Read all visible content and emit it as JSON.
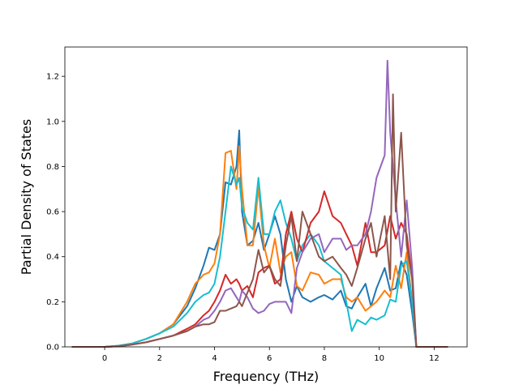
{
  "chart_data": {
    "type": "line",
    "xlabel": "Frequency (THz)",
    "ylabel": "Partial Density of States",
    "xlim": [
      -1.45,
      13.2
    ],
    "ylim": [
      0.0,
      1.33
    ],
    "xticks": [
      "0",
      "2",
      "4",
      "6",
      "8",
      "10",
      "12"
    ],
    "yticks": [
      "0.0",
      "0.2",
      "0.4",
      "0.6",
      "0.8",
      "1.0",
      "1.2"
    ],
    "grid": false,
    "legend": "none",
    "series": [
      {
        "color": "#1f77b4",
        "x": [
          -1.2,
          0.0,
          0.5,
          1.0,
          1.5,
          2.0,
          2.5,
          3.0,
          3.3,
          3.6,
          3.8,
          4.0,
          4.2,
          4.4,
          4.6,
          4.8,
          4.9,
          5.0,
          5.2,
          5.4,
          5.6,
          5.8,
          6.0,
          6.2,
          6.4,
          6.6,
          6.8,
          7.0,
          7.2,
          7.5,
          7.8,
          8.0,
          8.3,
          8.6,
          8.8,
          9.0,
          9.2,
          9.5,
          9.7,
          9.9,
          10.2,
          10.4,
          10.6,
          10.8,
          11.0,
          11.2,
          11.35,
          11.5,
          12.5
        ],
        "y": [
          0.0,
          0.0,
          0.005,
          0.015,
          0.035,
          0.06,
          0.1,
          0.18,
          0.26,
          0.36,
          0.44,
          0.43,
          0.5,
          0.73,
          0.72,
          0.8,
          0.96,
          0.6,
          0.45,
          0.47,
          0.55,
          0.43,
          0.5,
          0.58,
          0.5,
          0.3,
          0.2,
          0.27,
          0.22,
          0.2,
          0.22,
          0.23,
          0.21,
          0.25,
          0.18,
          0.17,
          0.22,
          0.28,
          0.18,
          0.26,
          0.35,
          0.25,
          0.26,
          0.38,
          0.32,
          0.15,
          0.0,
          0.0,
          0.0
        ]
      },
      {
        "color": "#ff7f0e",
        "x": [
          -1.2,
          0.0,
          0.5,
          1.0,
          1.5,
          2.0,
          2.5,
          3.0,
          3.3,
          3.6,
          3.8,
          4.0,
          4.2,
          4.4,
          4.6,
          4.8,
          4.9,
          5.0,
          5.2,
          5.4,
          5.6,
          5.8,
          6.0,
          6.2,
          6.4,
          6.6,
          6.8,
          7.0,
          7.2,
          7.5,
          7.8,
          8.0,
          8.3,
          8.6,
          8.8,
          9.0,
          9.2,
          9.5,
          9.7,
          9.9,
          10.2,
          10.4,
          10.6,
          10.8,
          11.0,
          11.2,
          11.35,
          11.5,
          12.5
        ],
        "y": [
          0.0,
          0.0,
          0.005,
          0.015,
          0.035,
          0.06,
          0.1,
          0.2,
          0.28,
          0.32,
          0.33,
          0.37,
          0.5,
          0.86,
          0.87,
          0.7,
          0.89,
          0.7,
          0.45,
          0.45,
          0.71,
          0.45,
          0.35,
          0.48,
          0.33,
          0.4,
          0.42,
          0.27,
          0.25,
          0.33,
          0.32,
          0.28,
          0.3,
          0.3,
          0.22,
          0.2,
          0.22,
          0.16,
          0.18,
          0.2,
          0.25,
          0.22,
          0.36,
          0.26,
          0.42,
          0.2,
          0.0,
          0.0,
          0.0
        ]
      },
      {
        "color": "#17becf",
        "x": [
          -1.2,
          0.0,
          0.5,
          1.0,
          1.5,
          2.0,
          2.5,
          3.0,
          3.3,
          3.6,
          3.8,
          4.0,
          4.2,
          4.4,
          4.6,
          4.8,
          4.9,
          5.0,
          5.2,
          5.4,
          5.6,
          5.8,
          6.0,
          6.2,
          6.4,
          6.6,
          6.8,
          7.0,
          7.2,
          7.5,
          7.8,
          8.0,
          8.3,
          8.6,
          8.8,
          9.0,
          9.2,
          9.5,
          9.7,
          9.9,
          10.2,
          10.4,
          10.6,
          10.8,
          11.0,
          11.2,
          11.35,
          11.5,
          12.5
        ],
        "y": [
          0.0,
          0.0,
          0.005,
          0.015,
          0.035,
          0.06,
          0.09,
          0.15,
          0.2,
          0.23,
          0.24,
          0.28,
          0.4,
          0.6,
          0.8,
          0.72,
          0.75,
          0.62,
          0.55,
          0.52,
          0.75,
          0.5,
          0.5,
          0.6,
          0.65,
          0.55,
          0.48,
          0.38,
          0.45,
          0.5,
          0.45,
          0.38,
          0.35,
          0.32,
          0.2,
          0.07,
          0.12,
          0.1,
          0.13,
          0.12,
          0.14,
          0.21,
          0.2,
          0.36,
          0.38,
          0.2,
          0.0,
          0.0,
          0.0
        ]
      },
      {
        "color": "#d62728",
        "x": [
          -1.2,
          0.0,
          0.5,
          1.0,
          1.5,
          2.0,
          2.5,
          3.0,
          3.3,
          3.6,
          3.8,
          4.0,
          4.2,
          4.4,
          4.6,
          4.8,
          4.9,
          5.0,
          5.2,
          5.4,
          5.6,
          5.8,
          6.0,
          6.2,
          6.4,
          6.6,
          6.8,
          7.0,
          7.2,
          7.5,
          7.8,
          8.0,
          8.3,
          8.6,
          8.8,
          9.0,
          9.2,
          9.5,
          9.7,
          9.9,
          10.2,
          10.4,
          10.6,
          10.8,
          11.0,
          11.2,
          11.35,
          11.5,
          12.5
        ],
        "y": [
          0.0,
          0.0,
          0.003,
          0.01,
          0.02,
          0.035,
          0.05,
          0.08,
          0.1,
          0.14,
          0.16,
          0.2,
          0.25,
          0.32,
          0.28,
          0.3,
          0.28,
          0.25,
          0.27,
          0.22,
          0.33,
          0.35,
          0.36,
          0.28,
          0.3,
          0.5,
          0.6,
          0.48,
          0.42,
          0.55,
          0.6,
          0.69,
          0.58,
          0.55,
          0.5,
          0.45,
          0.36,
          0.55,
          0.42,
          0.42,
          0.45,
          0.58,
          0.48,
          0.55,
          0.5,
          0.3,
          0.0,
          0.0,
          0.0
        ]
      },
      {
        "color": "#9467bd",
        "x": [
          -1.2,
          0.0,
          0.5,
          1.0,
          1.5,
          2.0,
          2.5,
          3.0,
          3.3,
          3.6,
          3.8,
          4.0,
          4.2,
          4.4,
          4.6,
          4.8,
          4.9,
          5.0,
          5.2,
          5.4,
          5.6,
          5.8,
          6.0,
          6.2,
          6.4,
          6.6,
          6.8,
          7.0,
          7.2,
          7.5,
          7.8,
          8.0,
          8.3,
          8.6,
          8.8,
          9.0,
          9.2,
          9.5,
          9.7,
          9.9,
          10.2,
          10.3,
          10.4,
          10.6,
          10.8,
          11.0,
          11.2,
          11.35,
          11.5,
          12.5
        ],
        "y": [
          0.0,
          0.0,
          0.003,
          0.01,
          0.02,
          0.035,
          0.05,
          0.07,
          0.09,
          0.12,
          0.13,
          0.16,
          0.2,
          0.25,
          0.26,
          0.22,
          0.2,
          0.25,
          0.22,
          0.17,
          0.15,
          0.16,
          0.19,
          0.2,
          0.2,
          0.2,
          0.15,
          0.35,
          0.42,
          0.48,
          0.5,
          0.42,
          0.48,
          0.48,
          0.43,
          0.45,
          0.45,
          0.5,
          0.6,
          0.75,
          0.85,
          1.27,
          0.95,
          0.65,
          0.4,
          0.65,
          0.35,
          0.0,
          0.0,
          0.0
        ]
      },
      {
        "color": "#8c564b",
        "x": [
          -1.2,
          0.0,
          0.5,
          1.0,
          1.5,
          2.0,
          2.5,
          3.0,
          3.3,
          3.6,
          3.8,
          4.0,
          4.2,
          4.4,
          4.6,
          4.8,
          4.9,
          5.0,
          5.2,
          5.4,
          5.6,
          5.8,
          6.0,
          6.2,
          6.4,
          6.6,
          6.8,
          7.0,
          7.2,
          7.5,
          7.8,
          8.0,
          8.3,
          8.6,
          8.8,
          9.0,
          9.2,
          9.5,
          9.7,
          9.9,
          10.2,
          10.4,
          10.5,
          10.6,
          10.8,
          11.0,
          11.2,
          11.35,
          11.5,
          12.5
        ],
        "y": [
          0.0,
          0.0,
          0.003,
          0.01,
          0.02,
          0.035,
          0.05,
          0.07,
          0.09,
          0.1,
          0.1,
          0.11,
          0.16,
          0.16,
          0.17,
          0.18,
          0.2,
          0.18,
          0.24,
          0.3,
          0.43,
          0.33,
          0.36,
          0.3,
          0.27,
          0.45,
          0.58,
          0.38,
          0.6,
          0.5,
          0.4,
          0.38,
          0.4,
          0.35,
          0.32,
          0.27,
          0.35,
          0.48,
          0.55,
          0.4,
          0.58,
          0.3,
          1.12,
          0.6,
          0.95,
          0.45,
          0.3,
          0.0,
          0.0,
          0.0
        ]
      }
    ]
  }
}
